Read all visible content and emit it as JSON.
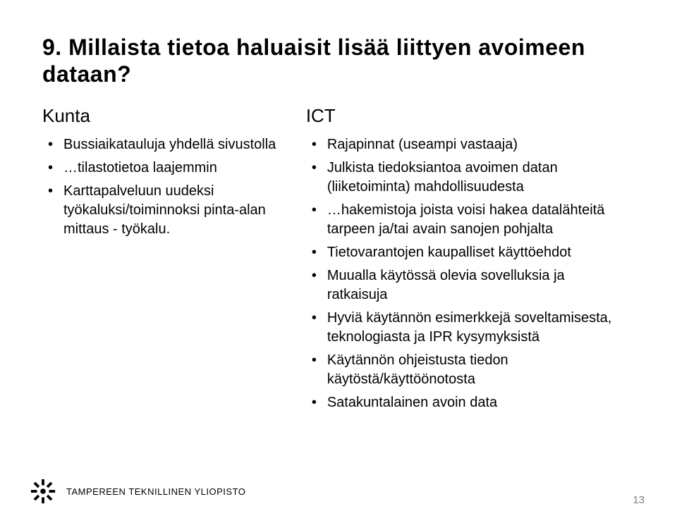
{
  "title": "9. Millaista tietoa haluaisit lisää liittyen avoimeen dataan?",
  "left": {
    "heading": "Kunta",
    "items": [
      {
        "text": "Bussiaikatauluja yhdellä sivustolla",
        "blue": false
      },
      {
        "text": "…tilastotietoa laajemmin",
        "blue": false
      },
      {
        "text": "Karttapalveluun uudeksi työkaluksi/toiminnoksi pinta-alan mittaus - työkalu.",
        "blue": false
      }
    ]
  },
  "right": {
    "heading": "ICT",
    "items": [
      {
        "text": "Rajapinnat (useampi vastaaja)",
        "blue": true
      },
      {
        "text": "Julkista tiedoksiantoa avoimen datan (liiketoiminta) mahdollisuudesta",
        "blue": false
      },
      {
        "text": "…hakemistoja joista voisi hakea datalähteitä tarpeen ja/tai avain sanojen pohjalta",
        "blue": false
      },
      {
        "text": "Tietovarantojen kaupalliset käyttöehdot",
        "blue": false
      },
      {
        "text": "Muualla käytössä olevia sovelluksia ja ratkaisuja",
        "blue": false
      },
      {
        "text": "Hyviä käytännön esimerkkejä soveltamisesta, teknologiasta ja IPR kysymyksistä",
        "blue": false
      },
      {
        "text": "Käytännön ohjeistusta tiedon käytöstä/käyttöönotosta",
        "blue": false
      },
      {
        "text": "Satakuntalainen avoin data",
        "blue": false
      }
    ]
  },
  "footer": {
    "org": "TAMPEREEN TEKNILLINEN YLIOPISTO"
  },
  "page_number": "13",
  "colors": {
    "blue": "#4f81bd",
    "text": "#000000",
    "pagenum": "#808080",
    "bg": "#ffffff"
  }
}
